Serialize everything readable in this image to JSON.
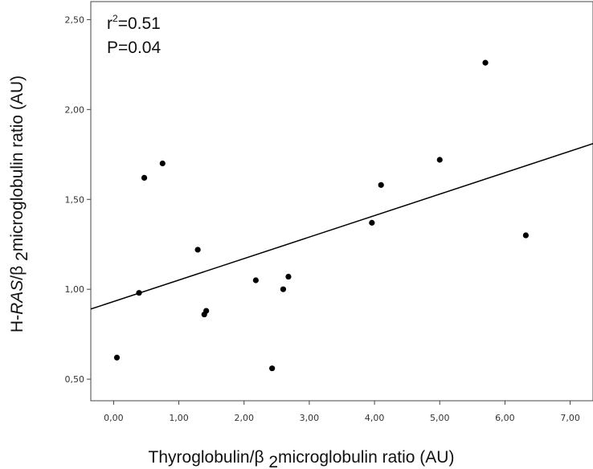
{
  "chart_data": {
    "type": "scatter",
    "title": "",
    "xlabel_parts": [
      "Thyroglobulin/β ",
      "2",
      "microglobulin ratio (AU)"
    ],
    "ylabel_parts": [
      "H-",
      "RAS",
      "/β ",
      "2",
      "microglobulin ratio (AU)"
    ],
    "xlim": [
      -0.35,
      7.35
    ],
    "ylim": [
      0.38,
      2.6
    ],
    "x_ticks": [
      0,
      1,
      2,
      3,
      4,
      5,
      6,
      7
    ],
    "x_tick_labels": [
      "0,00",
      "1,00",
      "2,00",
      "3,00",
      "4,00",
      "5,00",
      "6,00",
      "7,00"
    ],
    "y_ticks": [
      0.5,
      1.0,
      1.5,
      2.0,
      2.5
    ],
    "y_tick_labels": [
      "0,50",
      "1,00",
      "1,50",
      "2,00",
      "2,50"
    ],
    "points": [
      {
        "x": 0.05,
        "y": 0.62
      },
      {
        "x": 0.39,
        "y": 0.98
      },
      {
        "x": 0.47,
        "y": 1.62
      },
      {
        "x": 0.75,
        "y": 1.7
      },
      {
        "x": 1.29,
        "y": 1.22
      },
      {
        "x": 1.39,
        "y": 0.86
      },
      {
        "x": 1.42,
        "y": 0.88
      },
      {
        "x": 2.18,
        "y": 1.05
      },
      {
        "x": 2.43,
        "y": 0.56
      },
      {
        "x": 2.6,
        "y": 1.0
      },
      {
        "x": 2.68,
        "y": 1.07
      },
      {
        "x": 3.96,
        "y": 1.37
      },
      {
        "x": 4.1,
        "y": 1.58
      },
      {
        "x": 5.0,
        "y": 1.72
      },
      {
        "x": 5.7,
        "y": 2.26
      },
      {
        "x": 6.32,
        "y": 1.3
      }
    ],
    "fit_line": {
      "x": [
        -0.35,
        7.35
      ],
      "y": [
        0.89,
        1.81
      ]
    },
    "annotation": {
      "r_label": "r",
      "r_sup": "2",
      "r_value": "=0.51",
      "p_text": "P=0.04"
    },
    "grid": false,
    "legend": "none",
    "colors": {
      "points": "#000000",
      "line": "#000000",
      "axis": "#444444",
      "background": "#ffffff"
    }
  }
}
